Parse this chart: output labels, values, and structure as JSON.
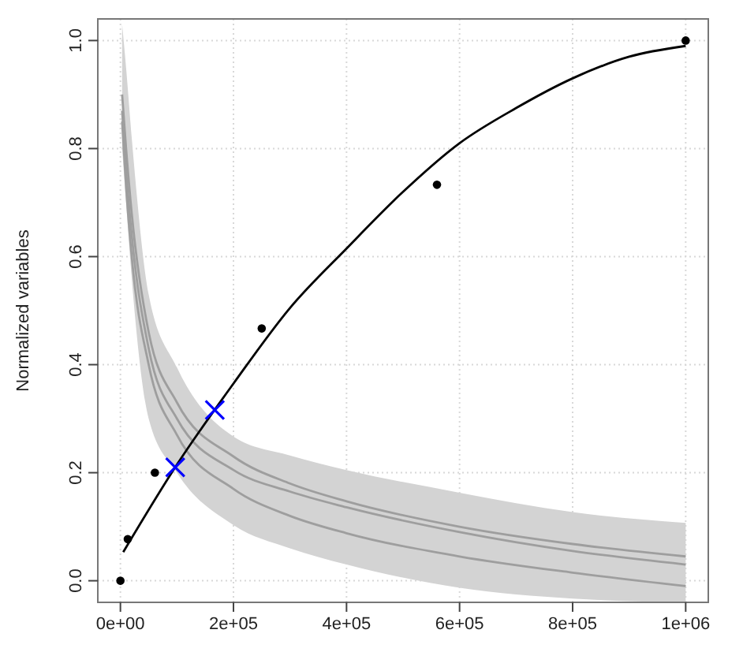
{
  "chart_data": {
    "type": "line",
    "ylabel": "Normalized variables",
    "xlim": [
      -40000,
      1040000
    ],
    "ylim": [
      -0.04,
      1.04
    ],
    "xticks": [
      {
        "value": 0,
        "label": "0e+00"
      },
      {
        "value": 200000,
        "label": "2e+05"
      },
      {
        "value": 400000,
        "label": "4e+05"
      },
      {
        "value": 600000,
        "label": "6e+05"
      },
      {
        "value": 800000,
        "label": "8e+05"
      },
      {
        "value": 1000000,
        "label": "1e+06"
      }
    ],
    "yticks": [
      {
        "value": 0,
        "label": "0.0"
      },
      {
        "value": 0.2,
        "label": "0.2"
      },
      {
        "value": 0.4,
        "label": "0.4"
      },
      {
        "value": 0.6,
        "label": "0.6"
      },
      {
        "value": 0.8,
        "label": "0.8"
      },
      {
        "value": 1,
        "label": "1.0"
      }
    ],
    "grid": true,
    "series": [
      {
        "color": "#9e9e9e",
        "x": [
          3000,
          10000,
          20000,
          50000,
          100000,
          200000,
          300000,
          400000,
          600000,
          800000,
          1000000
        ],
        "values": [
          0.9,
          0.8,
          0.68,
          0.46,
          0.33,
          0.23,
          0.18,
          0.147,
          0.1,
          0.068,
          0.045
        ],
        "lower": [
          0.8,
          0.7,
          0.56,
          0.3,
          0.2,
          0.103,
          0.06,
          0.03,
          -0.013,
          -0.033,
          -0.04
        ],
        "upper": [
          1.03,
          0.95,
          0.82,
          0.53,
          0.395,
          0.267,
          0.232,
          0.205,
          0.163,
          0.127,
          0.107
        ]
      },
      {
        "color": "#9e9e9e",
        "x": [
          3000,
          10000,
          20000,
          50000,
          100000,
          200000,
          300000,
          400000,
          600000,
          800000,
          1000000
        ],
        "values": [
          0.87,
          0.76,
          0.64,
          0.43,
          0.3,
          0.205,
          0.165,
          0.136,
          0.09,
          0.055,
          0.03
        ]
      },
      {
        "color": "#9e9e9e",
        "x": [
          3000,
          10000,
          20000,
          50000,
          100000,
          200000,
          300000,
          400000,
          600000,
          800000,
          1000000
        ],
        "values": [
          0.85,
          0.73,
          0.6,
          0.4,
          0.27,
          0.17,
          0.12,
          0.088,
          0.045,
          0.015,
          -0.01
        ]
      },
      {
        "color": "#000000",
        "x": [
          5000,
          100000,
          200000,
          300000,
          400000,
          500000,
          600000,
          700000,
          800000,
          900000,
          1000000
        ],
        "values": [
          0.053,
          0.215,
          0.365,
          0.505,
          0.615,
          0.72,
          0.81,
          0.875,
          0.93,
          0.97,
          0.99
        ]
      },
      {
        "type": "scatter",
        "marker": "circle",
        "color": "#000000",
        "x": [
          0,
          13000,
          61000,
          250000,
          560000,
          1000000
        ],
        "values": [
          0,
          0.077,
          0.2,
          0.467,
          0.733,
          1.0
        ]
      },
      {
        "type": "scatter",
        "marker": "cross",
        "color": "#0000ff",
        "x": [
          97000,
          167000
        ],
        "values": [
          0.21,
          0.316
        ]
      }
    ]
  }
}
